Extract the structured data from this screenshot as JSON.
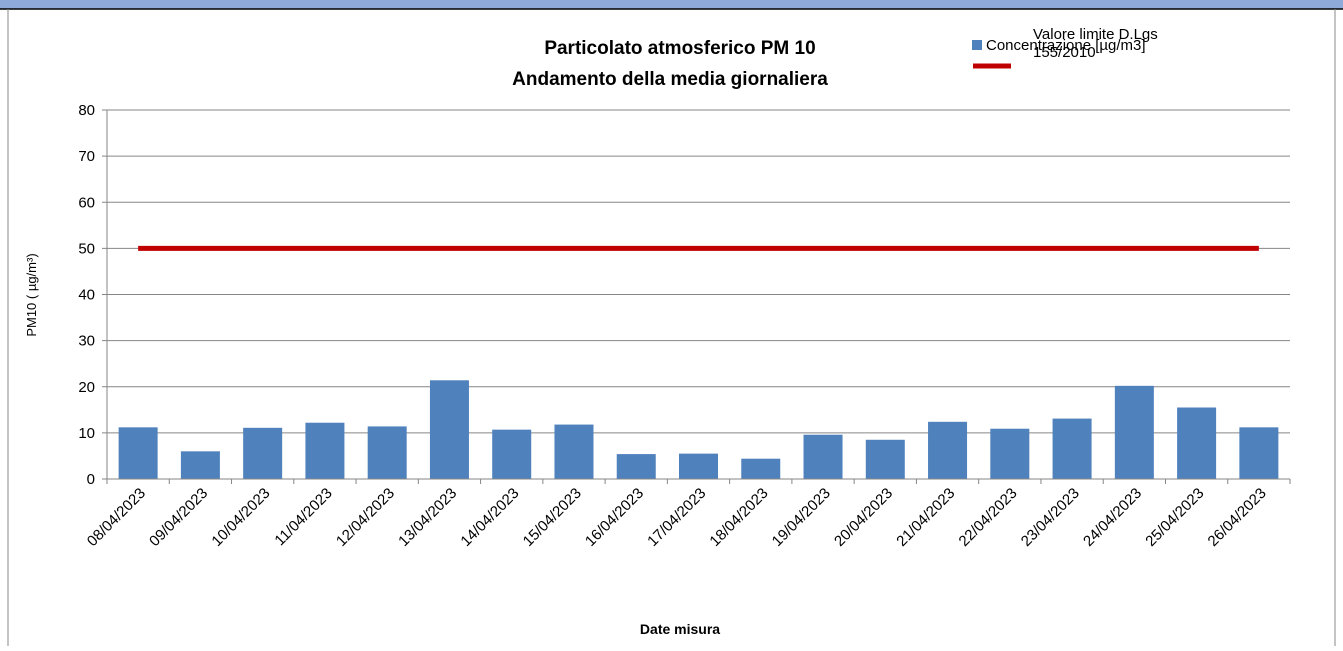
{
  "chart_data": {
    "type": "bar",
    "title": "Particolato atmosferico PM 10",
    "subtitle": "Andamento della media giornaliera",
    "x_label": "Date misura",
    "y_label": "PM10 ( µg/m³)",
    "categories": [
      "08/04/2023",
      "09/04/2023",
      "10/04/2023",
      "11/04/2023",
      "12/04/2023",
      "13/04/2023",
      "14/04/2023",
      "15/04/2023",
      "16/04/2023",
      "17/04/2023",
      "18/04/2023",
      "19/04/2023",
      "20/04/2023",
      "21/04/2023",
      "22/04/2023",
      "23/04/2023",
      "24/04/2023",
      "25/04/2023",
      "26/04/2023"
    ],
    "series": [
      {
        "name": "Concentrazione [µg/m3]",
        "type": "bar",
        "color": "#4f81bd",
        "values": [
          11.2,
          6.0,
          11.1,
          12.2,
          11.4,
          21.4,
          10.7,
          11.8,
          5.4,
          5.5,
          4.4,
          9.6,
          8.5,
          12.4,
          10.9,
          13.1,
          20.2,
          15.5,
          11.2
        ]
      },
      {
        "name": "Valore limite D.Lgs 155/2010",
        "type": "line",
        "color": "#c00000",
        "values": [
          50,
          50,
          50,
          50,
          50,
          50,
          50,
          50,
          50,
          50,
          50,
          50,
          50,
          50,
          50,
          50,
          50,
          50,
          50
        ]
      }
    ],
    "ylim": [
      0,
      80
    ],
    "yticks": [
      0,
      10,
      20,
      30,
      40,
      50,
      60,
      70,
      80
    ],
    "grid": true,
    "legend": "top-right"
  }
}
